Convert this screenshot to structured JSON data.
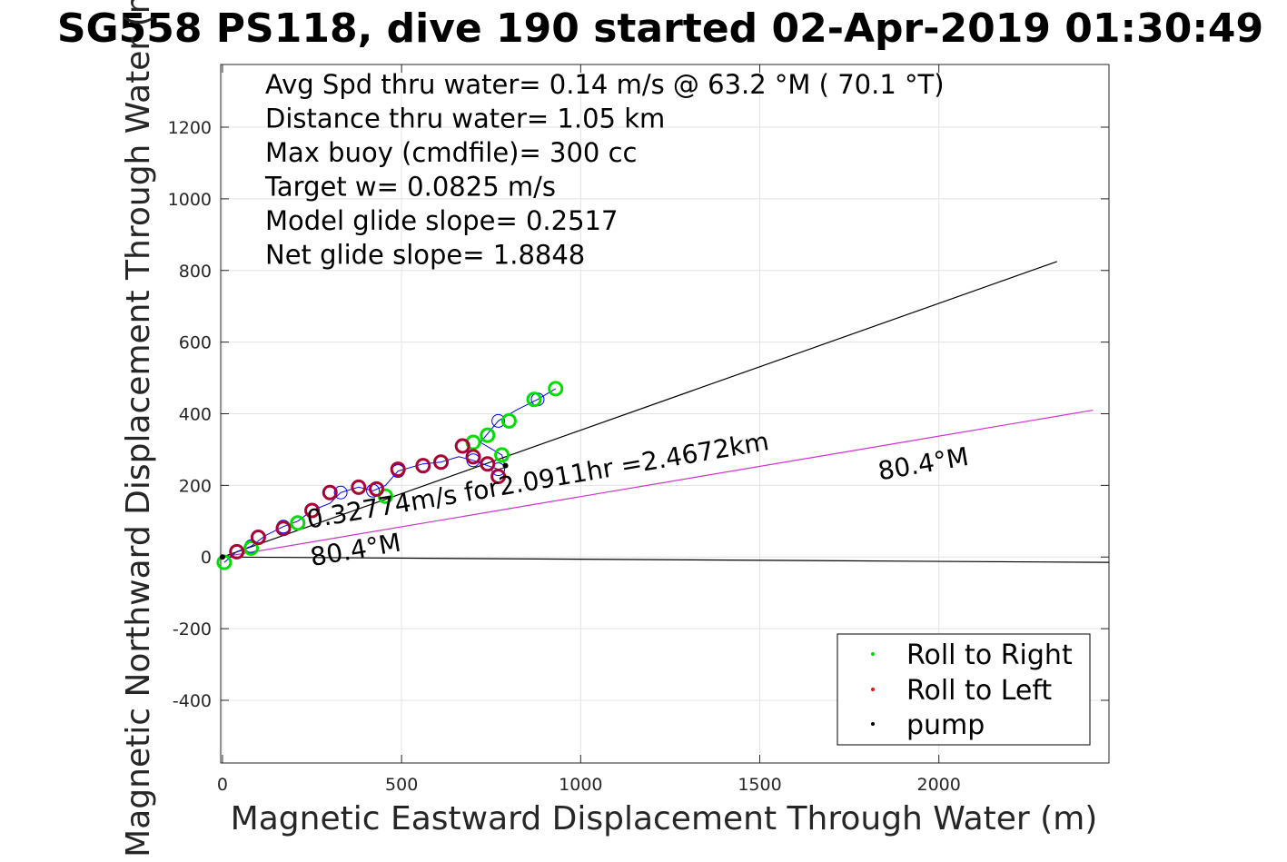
{
  "title": "SG558 PS118, dive 190 started 02-Apr-2019 01:30:49",
  "chart_data": {
    "type": "line",
    "xlabel": "Magnetic Eastward Displacement Through Water (m)",
    "ylabel": "Magnetic Northward Displacement Through Water (m)",
    "xlim": [
      -5,
      2475
    ],
    "ylim": [
      -575,
      1375
    ],
    "xticks": [
      0,
      500,
      1000,
      1500,
      2000
    ],
    "yticks": [
      -400,
      -200,
      0,
      200,
      400,
      600,
      800,
      1000,
      1200
    ],
    "grid": true,
    "legend_position": "bottom-right",
    "info_lines": [
      "Avg Spd thru water=  0.14 m/s @  63.2 °M ( 70.1 °T)",
      "Distance thru water=  1.05 km",
      "Max buoy (cmdfile)= 300 cc",
      "Target w= 0.0825 m/s",
      "Model glide slope= 0.2517",
      "Net glide slope= 1.8848"
    ],
    "annotations": [
      {
        "text": "0.32774m/s for2.0911hr =2.4672km",
        "x": 240,
        "y": 80,
        "angle_deg": -9.7
      },
      {
        "text": "80.4°M",
        "x": 250,
        "y": -25,
        "angle_deg": -9.7
      },
      {
        "text": "80.4°M",
        "x": 1835,
        "y": 215,
        "angle_deg": -9.7
      }
    ],
    "reference_lines": [
      {
        "name": "line-to-ne",
        "x": [
          0,
          2330
        ],
        "y": [
          0,
          825
        ],
        "color": "#000000"
      },
      {
        "name": "current-80-4",
        "x": [
          0,
          2430
        ],
        "y": [
          0,
          410
        ],
        "color": "#cc33cc"
      },
      {
        "name": "line-to-east",
        "x": [
          0,
          2475
        ],
        "y": [
          0,
          -15
        ],
        "color": "#000000"
      }
    ],
    "series": [
      {
        "name": "Roll to Right",
        "color": "#00dd00",
        "marker": "dot"
      },
      {
        "name": "Roll to Left",
        "color": "#ee1111",
        "marker": "dot"
      },
      {
        "name": "pump",
        "color": "#000000",
        "marker": "dot"
      }
    ],
    "track": {
      "color": "#0000ff",
      "points": [
        [
          5,
          -15
        ],
        [
          40,
          15
        ],
        [
          80,
          30
        ],
        [
          120,
          60
        ],
        [
          170,
          85
        ],
        [
          210,
          100
        ],
        [
          250,
          130
        ],
        [
          300,
          150
        ],
        [
          330,
          180
        ],
        [
          380,
          195
        ],
        [
          420,
          185
        ],
        [
          455,
          200
        ],
        [
          490,
          240
        ],
        [
          560,
          260
        ],
        [
          610,
          265
        ],
        [
          660,
          280
        ],
        [
          700,
          270
        ],
        [
          740,
          255
        ],
        [
          770,
          245
        ],
        [
          790,
          250
        ],
        [
          780,
          285
        ],
        [
          720,
          320
        ],
        [
          770,
          380
        ],
        [
          820,
          410
        ],
        [
          880,
          440
        ],
        [
          930,
          470
        ]
      ],
      "roll_right_points": [
        [
          5,
          -15
        ],
        [
          80,
          25
        ],
        [
          210,
          95
        ],
        [
          455,
          170
        ],
        [
          700,
          320
        ],
        [
          740,
          340
        ],
        [
          780,
          285
        ],
        [
          800,
          380
        ],
        [
          870,
          440
        ],
        [
          930,
          470
        ]
      ],
      "roll_left_points": [
        [
          40,
          15
        ],
        [
          100,
          55
        ],
        [
          170,
          80
        ],
        [
          250,
          130
        ],
        [
          300,
          180
        ],
        [
          380,
          195
        ],
        [
          430,
          190
        ],
        [
          490,
          245
        ],
        [
          560,
          255
        ],
        [
          610,
          265
        ],
        [
          670,
          310
        ],
        [
          700,
          280
        ],
        [
          740,
          260
        ],
        [
          770,
          225
        ]
      ],
      "pump_points": [
        [
          0,
          0
        ],
        [
          790,
          255
        ]
      ]
    }
  }
}
